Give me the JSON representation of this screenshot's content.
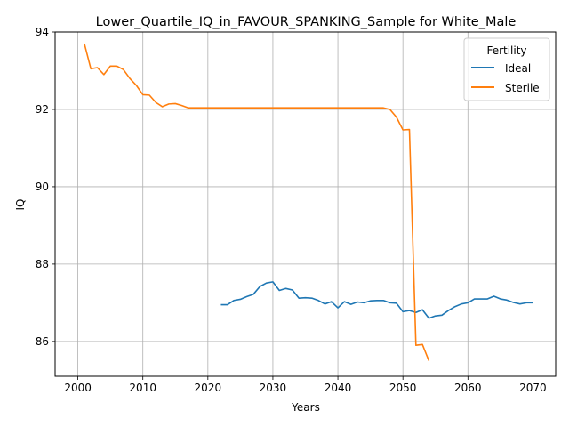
{
  "chart_data": {
    "type": "line",
    "title": "Lower_Quartile_IQ_in_FAVOUR_SPANKING_Sample for White_Male",
    "xlabel": "Years",
    "ylabel": "IQ",
    "xlim": [
      2000,
      2070
    ],
    "ylim": [
      85.1,
      94.0
    ],
    "xticks": [
      2000,
      2010,
      2020,
      2030,
      2040,
      2050,
      2060,
      2070
    ],
    "yticks": [
      86,
      88,
      90,
      92,
      94
    ],
    "grid": true,
    "legend": {
      "title": "Fertility",
      "placement": "top-right"
    },
    "series": [
      {
        "name": "Ideal",
        "color": "#1f77b4",
        "x": [
          2022,
          2023,
          2024,
          2025,
          2026,
          2027,
          2028,
          2029,
          2030,
          2031,
          2032,
          2033,
          2034,
          2035,
          2036,
          2037,
          2038,
          2039,
          2040,
          2041,
          2042,
          2043,
          2044,
          2045,
          2046,
          2047,
          2048,
          2049,
          2050,
          2051,
          2052,
          2053,
          2054,
          2055,
          2056,
          2057,
          2058,
          2059,
          2060,
          2061,
          2062,
          2063,
          2064,
          2065,
          2066,
          2067,
          2068,
          2069,
          2070
        ],
        "values": [
          86.95,
          86.95,
          87.06,
          87.09,
          87.16,
          87.22,
          87.42,
          87.51,
          87.54,
          87.32,
          87.37,
          87.33,
          87.12,
          87.13,
          87.12,
          87.06,
          86.97,
          87.03,
          86.87,
          87.03,
          86.96,
          87.02,
          87.0,
          87.05,
          87.06,
          87.06,
          87.0,
          86.99,
          86.77,
          86.8,
          86.75,
          86.82,
          86.6,
          86.66,
          86.68,
          86.8,
          86.9,
          86.97,
          87.0,
          87.1,
          87.1,
          87.1,
          87.17,
          87.1,
          87.07,
          87.01,
          86.97,
          87.0,
          87.0
        ]
      },
      {
        "name": "Sterile",
        "color": "#ff7f0e",
        "x": [
          2001,
          2002,
          2003,
          2004,
          2005,
          2006,
          2007,
          2008,
          2009,
          2010,
          2011,
          2012,
          2013,
          2014,
          2015,
          2016,
          2017,
          2018,
          2019,
          2020,
          2021,
          2022,
          2023,
          2024,
          2025,
          2026,
          2027,
          2028,
          2029,
          2030,
          2031,
          2032,
          2033,
          2034,
          2035,
          2036,
          2037,
          2038,
          2039,
          2040,
          2041,
          2042,
          2043,
          2044,
          2045,
          2046,
          2047,
          2048,
          2049,
          2050,
          2051,
          2052,
          2053,
          2054
        ],
        "values": [
          93.7,
          93.05,
          93.08,
          92.9,
          93.12,
          93.12,
          93.03,
          92.8,
          92.62,
          92.38,
          92.37,
          92.18,
          92.07,
          92.14,
          92.15,
          92.1,
          92.04,
          92.04,
          92.04,
          92.04,
          92.04,
          92.04,
          92.04,
          92.04,
          92.04,
          92.04,
          92.04,
          92.04,
          92.04,
          92.04,
          92.04,
          92.04,
          92.04,
          92.04,
          92.04,
          92.04,
          92.04,
          92.04,
          92.04,
          92.04,
          92.04,
          92.04,
          92.04,
          92.04,
          92.04,
          92.04,
          92.04,
          92.0,
          91.8,
          91.47,
          91.48,
          85.9,
          85.92,
          85.5
        ]
      }
    ]
  }
}
